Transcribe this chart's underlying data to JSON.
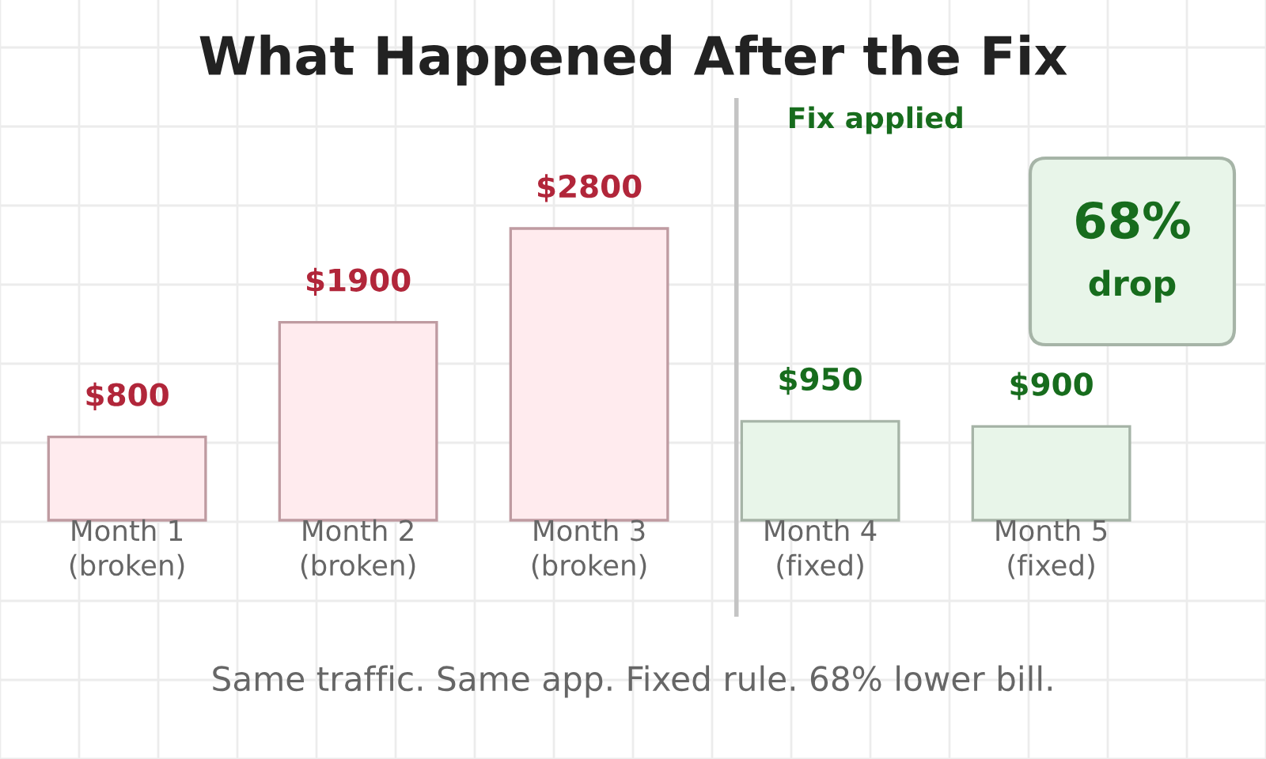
{
  "chart_data": {
    "type": "bar",
    "title": "What Happened After the Fix",
    "categories": [
      "Month 1\n(broken)",
      "Month 2\n(broken)",
      "Month 3\n(broken)",
      "Month 4\n(fixed)",
      "Month 5\n(fixed)"
    ],
    "values": [
      800,
      1900,
      2800,
      950,
      900
    ],
    "colors": [
      "#ffebee",
      "#ffebee",
      "#ffebee",
      "#e8f5e9",
      "#e8f5e9"
    ],
    "value_labels": [
      "$800",
      "$1900",
      "$2800",
      "$950",
      "$900"
    ],
    "ref_lines": [
      {
        "axis": "x",
        "value": "Month 4\n(fixed)",
        "label": "Fix applied",
        "color": "#c4c4c4"
      }
    ],
    "annotations": [
      "68%\ndrop",
      "Same traffic. Same app. Fixed rule. 68% lower bill."
    ],
    "grid": true
  }
}
